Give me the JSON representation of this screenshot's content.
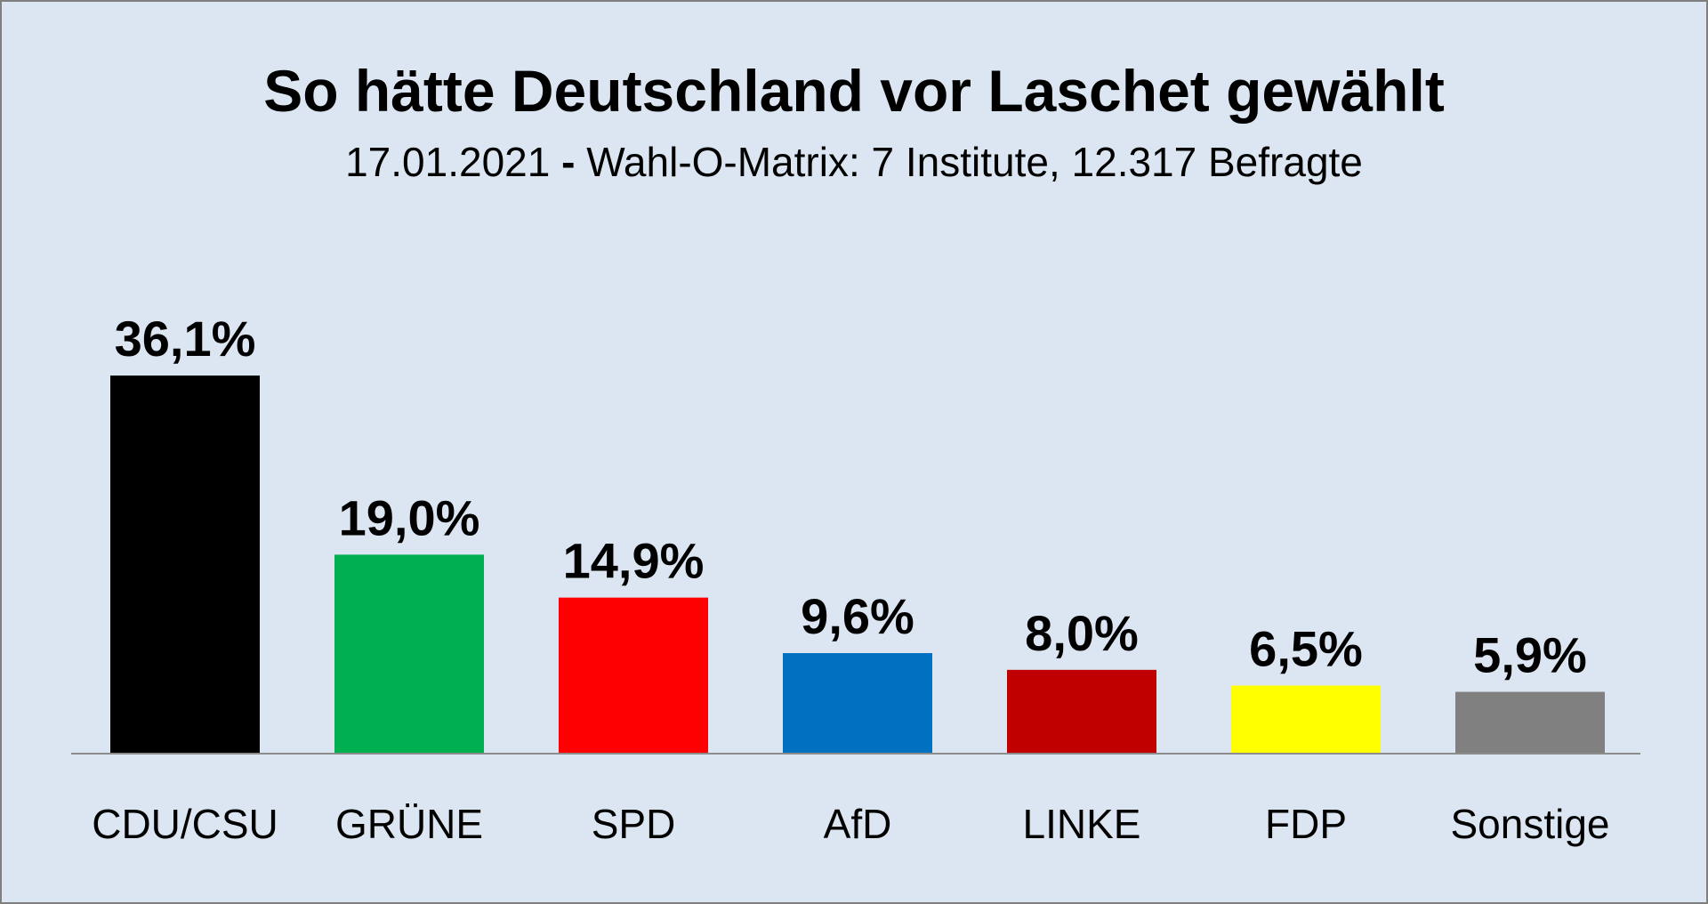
{
  "chart_data": {
    "type": "bar",
    "title": "So hätte Deutschland vor Laschet gewählt",
    "subtitle": {
      "date": "17.01.2021",
      "separator": "-",
      "source": "Wahl-O-Matrix: 7 Institute, 12.317 Befragte"
    },
    "categories": [
      "CDU/CSU",
      "GRÜNE",
      "SPD",
      "AfD",
      "LINKE",
      "FDP",
      "Sonstige"
    ],
    "values": [
      36.1,
      19.0,
      14.9,
      9.6,
      8.0,
      6.5,
      5.9
    ],
    "value_labels": [
      "36,1%",
      "19,0%",
      "14,9%",
      "9,6%",
      "8,0%",
      "6,5%",
      "5,9%"
    ],
    "colors": [
      "#000000",
      "#00b050",
      "#ff0000",
      "#0070c0",
      "#c00000",
      "#ffff00",
      "#808080"
    ],
    "background_color": "#dce6f2",
    "grid": false,
    "legend": "none"
  }
}
